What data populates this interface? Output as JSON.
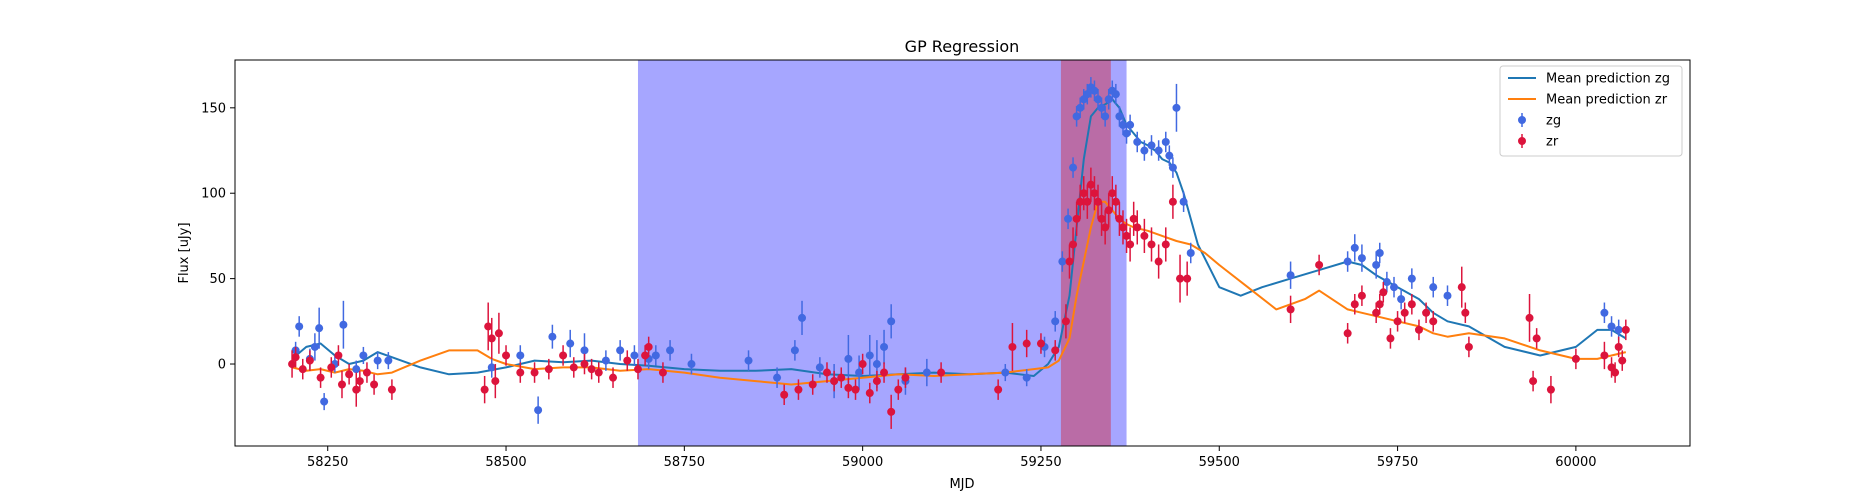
{
  "chart_data": {
    "type": "scatter",
    "title": "GP Regression",
    "xlabel": "MJD",
    "ylabel": "Flux [uJy]",
    "xlim": [
      58120,
      60160
    ],
    "ylim": [
      -48,
      178
    ],
    "xticks": [
      58250,
      58500,
      58750,
      59000,
      59250,
      59500,
      59750,
      60000
    ],
    "yticks": [
      0,
      50,
      100,
      150
    ],
    "grid": false,
    "legend_position": "top-right",
    "spans": [
      {
        "x0": 58685,
        "x1": 59370,
        "color": "#0000ff",
        "opacity": 0.35
      },
      {
        "x0": 59278,
        "x1": 59348,
        "color": "#e00000",
        "opacity": 0.35
      }
    ],
    "series": [
      {
        "name": "Mean prediction zg",
        "kind": "line",
        "color": "#1f77b4",
        "x": [
          58200,
          58220,
          58240,
          58260,
          58280,
          58300,
          58320,
          58340,
          58380,
          58420,
          58460,
          58500,
          58540,
          58580,
          58620,
          58660,
          58700,
          58750,
          58800,
          58850,
          58900,
          58950,
          59000,
          59050,
          59100,
          59150,
          59200,
          59240,
          59260,
          59275,
          59290,
          59300,
          59310,
          59320,
          59330,
          59340,
          59350,
          59360,
          59370,
          59380,
          59390,
          59400,
          59410,
          59420,
          59430,
          59440,
          59450,
          59470,
          59500,
          59530,
          59560,
          59600,
          59640,
          59680,
          59700,
          59720,
          59750,
          59780,
          59800,
          59820,
          59850,
          59900,
          59950,
          60000,
          60030,
          60050,
          60070
        ],
        "y": [
          3,
          10,
          12,
          5,
          0,
          2,
          7,
          4,
          -2,
          -6,
          -5,
          -2,
          2,
          1,
          2,
          0,
          -1,
          -3,
          -4,
          -4,
          -3,
          -6,
          -7,
          -6,
          -5,
          -6,
          -5,
          -7,
          0,
          10,
          40,
          80,
          120,
          145,
          150,
          152,
          155,
          150,
          140,
          135,
          130,
          128,
          125,
          120,
          118,
          112,
          100,
          70,
          45,
          40,
          45,
          50,
          55,
          60,
          58,
          52,
          45,
          38,
          30,
          25,
          22,
          10,
          5,
          10,
          20,
          20,
          15
        ]
      },
      {
        "name": "Mean prediction zr",
        "kind": "line",
        "color": "#ff7f0e",
        "x": [
          58200,
          58220,
          58240,
          58260,
          58280,
          58300,
          58320,
          58340,
          58380,
          58420,
          58460,
          58480,
          58500,
          58540,
          58580,
          58620,
          58660,
          58700,
          58750,
          58800,
          58850,
          58900,
          58950,
          59000,
          59050,
          59100,
          59150,
          59200,
          59240,
          59260,
          59275,
          59290,
          59300,
          59310,
          59320,
          59330,
          59340,
          59350,
          59360,
          59370,
          59380,
          59400,
          59420,
          59440,
          59460,
          59480,
          59500,
          59540,
          59580,
          59620,
          59640,
          59680,
          59700,
          59720,
          59750,
          59780,
          59800,
          59820,
          59850,
          59900,
          59950,
          60000,
          60030,
          60050,
          60070
        ],
        "y": [
          -2,
          -4,
          -3,
          -5,
          -3,
          -4,
          -6,
          -5,
          2,
          8,
          8,
          3,
          0,
          -3,
          -2,
          -2,
          -4,
          -3,
          -5,
          -8,
          -10,
          -12,
          -10,
          -8,
          -6,
          -7,
          -6,
          -5,
          -3,
          -2,
          2,
          15,
          40,
          60,
          80,
          95,
          95,
          90,
          85,
          82,
          80,
          78,
          75,
          72,
          70,
          65,
          58,
          45,
          32,
          38,
          43,
          32,
          30,
          28,
          25,
          22,
          18,
          16,
          18,
          15,
          8,
          3,
          3,
          5,
          7
        ]
      },
      {
        "name": "zg",
        "kind": "errorbar",
        "color": "#4169e1",
        "x": [
          58205,
          58210,
          58225,
          58232,
          58238,
          58245,
          58260,
          58272,
          58290,
          58300,
          58320,
          58335,
          58480,
          58520,
          58545,
          58565,
          58590,
          58610,
          58640,
          58660,
          58680,
          58700,
          58710,
          58730,
          58760,
          58840,
          58880,
          58905,
          58915,
          58940,
          58960,
          58980,
          58995,
          59010,
          59020,
          59030,
          59040,
          59060,
          59090,
          59200,
          59230,
          59255,
          59270,
          59280,
          59288,
          59295,
          59300,
          59305,
          59310,
          59315,
          59320,
          59325,
          59330,
          59335,
          59340,
          59345,
          59350,
          59355,
          59360,
          59365,
          59370,
          59375,
          59385,
          59395,
          59405,
          59415,
          59425,
          59430,
          59435,
          59440,
          59450,
          59460,
          59600,
          59680,
          59690,
          59700,
          59720,
          59725,
          59735,
          59745,
          59755,
          59770,
          59800,
          59820,
          60040,
          60050,
          60060
        ],
        "y": [
          8,
          22,
          3,
          10,
          21,
          -22,
          0,
          23,
          -3,
          5,
          2,
          2,
          -2,
          5,
          -27,
          16,
          12,
          8,
          2,
          8,
          5,
          3,
          5,
          8,
          0,
          2,
          -8,
          8,
          27,
          -2,
          -10,
          3,
          -5,
          5,
          0,
          10,
          25,
          -10,
          -5,
          -5,
          -8,
          10,
          25,
          60,
          85,
          115,
          145,
          150,
          155,
          158,
          162,
          160,
          155,
          150,
          145,
          155,
          160,
          158,
          145,
          140,
          135,
          140,
          130,
          125,
          128,
          125,
          130,
          122,
          115,
          150,
          95,
          65,
          52,
          60,
          68,
          62,
          58,
          65,
          48,
          45,
          38,
          50,
          45,
          40,
          30,
          22,
          20
        ],
        "err": [
          5,
          6,
          6,
          8,
          12,
          5,
          5,
          14,
          5,
          5,
          5,
          5,
          6,
          6,
          8,
          7,
          8,
          10,
          6,
          6,
          6,
          6,
          6,
          6,
          6,
          6,
          6,
          6,
          10,
          6,
          10,
          14,
          10,
          12,
          14,
          10,
          10,
          8,
          8,
          5,
          5,
          6,
          6,
          6,
          6,
          6,
          6,
          6,
          6,
          6,
          6,
          6,
          6,
          6,
          6,
          6,
          6,
          6,
          6,
          6,
          6,
          6,
          6,
          6,
          6,
          6,
          6,
          6,
          6,
          14,
          6,
          6,
          8,
          6,
          8,
          8,
          8,
          6,
          6,
          6,
          6,
          6,
          6,
          6,
          6,
          6,
          6
        ]
      },
      {
        "name": "zr",
        "kind": "errorbar",
        "color": "#dc143c",
        "x": [
          58200,
          58205,
          58215,
          58225,
          58240,
          58255,
          58265,
          58270,
          58280,
          58290,
          58295,
          58305,
          58315,
          58340,
          58470,
          58475,
          58480,
          58485,
          58490,
          58500,
          58520,
          58540,
          58560,
          58580,
          58595,
          58610,
          58620,
          58630,
          58650,
          58670,
          58685,
          58695,
          58700,
          58720,
          58890,
          58910,
          58930,
          58950,
          58960,
          58970,
          58980,
          58990,
          59000,
          59010,
          59020,
          59030,
          59040,
          59050,
          59060,
          59110,
          59190,
          59210,
          59230,
          59250,
          59270,
          59285,
          59290,
          59295,
          59300,
          59305,
          59310,
          59315,
          59320,
          59325,
          59330,
          59335,
          59340,
          59345,
          59350,
          59355,
          59360,
          59365,
          59370,
          59375,
          59380,
          59385,
          59395,
          59405,
          59415,
          59425,
          59435,
          59445,
          59455,
          59600,
          59640,
          59680,
          59690,
          59700,
          59720,
          59725,
          59730,
          59740,
          59750,
          59760,
          59770,
          59780,
          59790,
          59800,
          59840,
          59845,
          59850,
          59935,
          59940,
          59945,
          59965,
          60000,
          60040,
          60050,
          60055,
          60060,
          60065,
          60070
        ],
        "y": [
          0,
          4,
          -3,
          2,
          -8,
          -2,
          5,
          -12,
          -6,
          -15,
          -10,
          -5,
          -12,
          -15,
          -15,
          22,
          15,
          -10,
          18,
          5,
          -5,
          -5,
          -3,
          5,
          -2,
          0,
          -3,
          -5,
          -8,
          2,
          -3,
          5,
          10,
          -5,
          -18,
          -15,
          -12,
          -5,
          -10,
          -8,
          -14,
          -15,
          0,
          -17,
          -10,
          -5,
          -28,
          -15,
          -8,
          -5,
          -15,
          10,
          12,
          12,
          8,
          25,
          60,
          70,
          85,
          95,
          100,
          95,
          105,
          100,
          95,
          85,
          80,
          90,
          100,
          95,
          85,
          80,
          75,
          70,
          85,
          80,
          75,
          70,
          60,
          70,
          95,
          50,
          50,
          32,
          58,
          18,
          35,
          40,
          30,
          35,
          42,
          15,
          25,
          30,
          35,
          20,
          30,
          25,
          45,
          30,
          10,
          27,
          -10,
          15,
          -15,
          3,
          5,
          -2,
          -5,
          10,
          2,
          20
        ],
        "err": [
          8,
          6,
          6,
          6,
          6,
          6,
          6,
          8,
          6,
          10,
          6,
          6,
          6,
          6,
          8,
          14,
          12,
          10,
          12,
          6,
          6,
          6,
          6,
          6,
          6,
          6,
          6,
          6,
          6,
          6,
          6,
          6,
          6,
          6,
          6,
          6,
          6,
          6,
          6,
          6,
          6,
          6,
          6,
          6,
          6,
          6,
          10,
          6,
          6,
          6,
          6,
          14,
          8,
          6,
          6,
          10,
          10,
          10,
          10,
          10,
          10,
          10,
          10,
          10,
          10,
          10,
          10,
          10,
          10,
          10,
          10,
          10,
          10,
          10,
          10,
          10,
          10,
          10,
          10,
          10,
          10,
          14,
          10,
          8,
          6,
          6,
          6,
          6,
          6,
          6,
          6,
          6,
          6,
          6,
          6,
          6,
          6,
          6,
          12,
          6,
          6,
          14,
          6,
          6,
          8,
          6,
          8,
          6,
          6,
          6,
          6,
          6
        ]
      }
    ]
  }
}
